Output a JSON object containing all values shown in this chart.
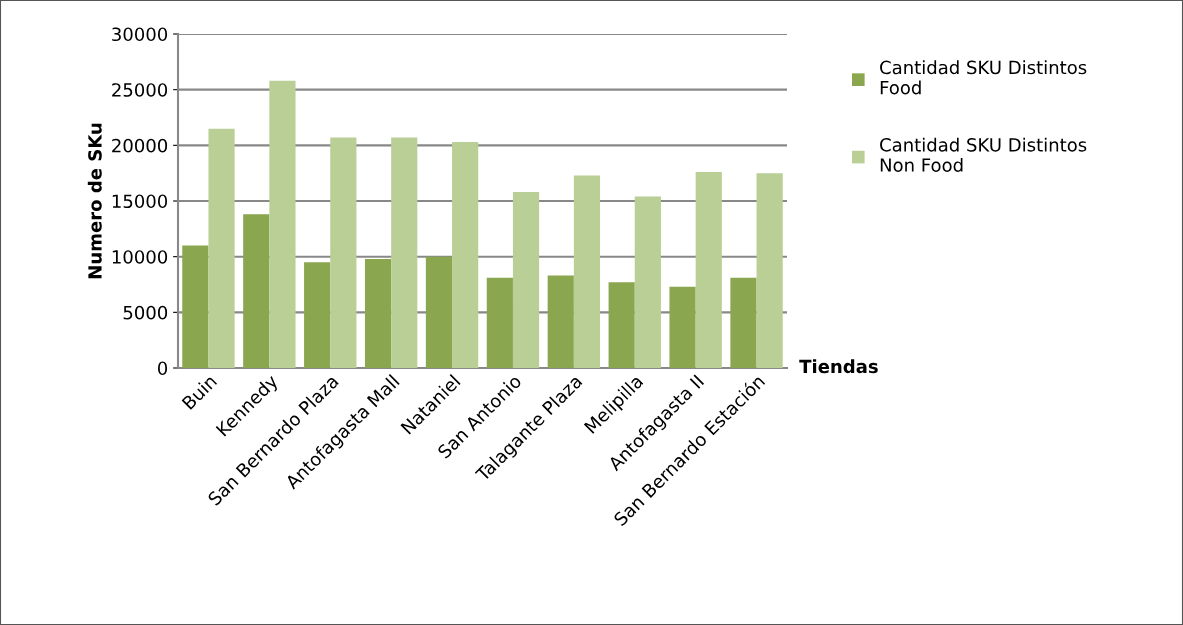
{
  "chart_data": {
    "type": "bar",
    "xlabel": "Tiendas",
    "ylabel": "Numero de SKu",
    "categories": [
      "Buin",
      "Kennedy",
      "San Bernardo Plaza",
      "Antofagasta Mall",
      "Nataniel",
      "San Antonio",
      "Talagante Plaza",
      "Melipilla",
      "Antofagasta II",
      "San Bernardo Estación"
    ],
    "series": [
      {
        "name": "Cantidad SKU Distintos Food",
        "color": "#8aa64f",
        "values": [
          11000,
          13800,
          9500,
          9800,
          10000,
          8100,
          8300,
          7700,
          7300,
          8100
        ]
      },
      {
        "name": "Cantidad SKU Distintos Non Food",
        "color": "#bacf96",
        "values": [
          21500,
          25800,
          20700,
          20700,
          20300,
          15800,
          17300,
          15400,
          17600,
          17500
        ]
      }
    ],
    "ylim": [
      0,
      30000
    ],
    "yticks": [
      0,
      5000,
      10000,
      15000,
      20000,
      25000,
      30000
    ],
    "grid": "y",
    "legend": "right"
  }
}
